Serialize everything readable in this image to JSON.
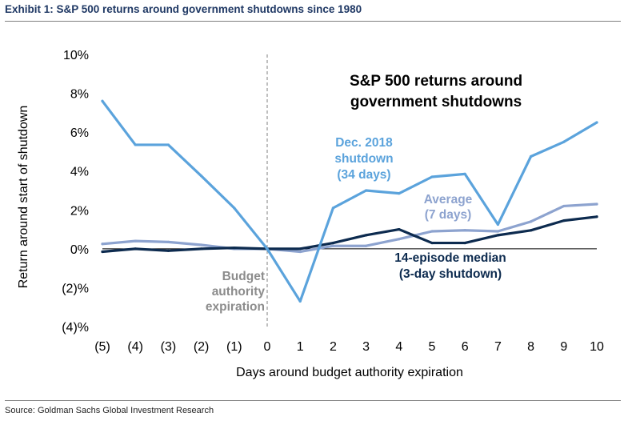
{
  "exhibit_title": "Exhibit 1: S&P 500 returns around government shutdowns since 1980",
  "source": "Source: Goldman Sachs Global Investment Research",
  "chart_data": {
    "type": "line",
    "title_lines": [
      "S&P 500 returns around",
      "government shutdowns"
    ],
    "xlabel": "Days around budget authority expiration",
    "ylabel": "Return around start of shutdown",
    "x": [
      -5,
      -4,
      -3,
      -2,
      -1,
      0,
      1,
      2,
      3,
      4,
      5,
      6,
      7,
      8,
      9,
      10
    ],
    "x_tick_labels": [
      "(5)",
      "(4)",
      "(3)",
      "(2)",
      "(1)",
      "0",
      "1",
      "2",
      "3",
      "4",
      "5",
      "6",
      "7",
      "8",
      "9",
      "10"
    ],
    "ylim": [
      -4,
      10
    ],
    "y_ticks": [
      -4,
      -2,
      0,
      2,
      4,
      6,
      8,
      10
    ],
    "y_tick_labels": [
      "(4)%",
      "(2)%",
      "0%",
      "2%",
      "4%",
      "6%",
      "8%",
      "10%"
    ],
    "series": [
      {
        "name": "Dec. 2018 shutdown (34 days)",
        "color": "#5ba3dc",
        "label_lines": [
          "Dec. 2018",
          "shutdown",
          "(34 days)"
        ],
        "values": [
          7.6,
          5.35,
          5.35,
          3.75,
          2.1,
          0.0,
          -2.7,
          2.1,
          3.0,
          2.85,
          3.7,
          3.85,
          1.25,
          4.75,
          5.5,
          6.5
        ]
      },
      {
        "name": "Average (7 days)",
        "color": "#8da3cf",
        "label_lines": [
          "Average",
          "(7 days)"
        ],
        "values": [
          0.25,
          0.4,
          0.35,
          0.2,
          0.0,
          0.0,
          -0.15,
          0.15,
          0.15,
          0.5,
          0.9,
          0.95,
          0.9,
          1.4,
          2.2,
          2.3
        ]
      },
      {
        "name": "14-episode median (3-day shutdown)",
        "color": "#0d2b4f",
        "label_lines": [
          "14-episode median",
          "(3-day shutdown)"
        ],
        "values": [
          -0.15,
          0.0,
          -0.1,
          0.0,
          0.05,
          0.0,
          0.0,
          0.3,
          0.7,
          1.0,
          0.3,
          0.3,
          0.7,
          0.95,
          1.45,
          1.65
        ]
      }
    ],
    "reference_line": {
      "x": 0,
      "style": "dashed",
      "label_lines": [
        "Budget",
        "authority",
        "expiration"
      ],
      "color": "#7f7f7f"
    }
  }
}
